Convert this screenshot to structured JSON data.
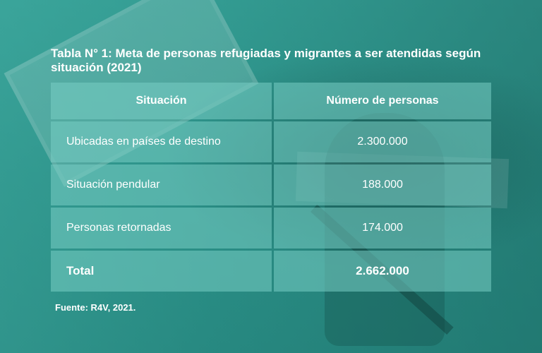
{
  "title": "Tabla N° 1: Meta de personas refugiadas y migrantes a ser atendidas según situación (2021)",
  "table": {
    "headers": [
      "Situación",
      "Número de personas"
    ],
    "rows": [
      {
        "label": "Ubicadas en países de destino",
        "value": "2.300.000"
      },
      {
        "label": "Situación pendular",
        "value": "188.000"
      },
      {
        "label": "Personas retornadas",
        "value": "174.000"
      }
    ],
    "total": {
      "label": "Total",
      "value": "2.662.000"
    }
  },
  "source": "Fuente: R4V, 2021.",
  "colors": {
    "background_teal": "#2f9b92",
    "cell_overlay": "#78cdc4",
    "text": "#ffffff"
  }
}
